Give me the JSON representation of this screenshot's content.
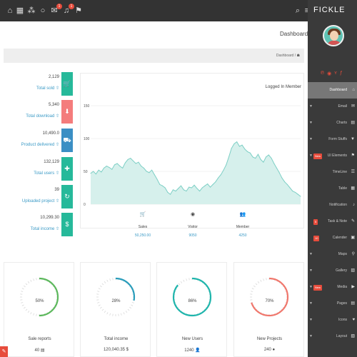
{
  "topbar": {
    "icons": [
      "home-icon",
      "grid-icon",
      "share-icon",
      "comment-icon",
      "envelope-icon",
      "bell-icon",
      "flag-icon"
    ],
    "badges": {
      "envelope": "1",
      "bell": "1"
    }
  },
  "brand": "FICKLE",
  "page": {
    "title": "Dashboard",
    "breadcrumb": "Dashboard  /"
  },
  "stats": [
    {
      "value": "2,129",
      "label": "Total sold",
      "icon": "cart-icon",
      "color": "#26b99a"
    },
    {
      "value": "5,340",
      "label": "Total download",
      "icon": "download-icon",
      "color": "#f47c7c"
    },
    {
      "value": "10,490.0",
      "label": "Product delivered",
      "icon": "truck-icon",
      "color": "#3b8fc4"
    },
    {
      "value": "132,129",
      "label": "Total users",
      "icon": "gift-icon",
      "color": "#26b99a"
    },
    {
      "value": "39",
      "label": "Uploaded project",
      "icon": "refresh-icon",
      "color": "#26b99a"
    },
    {
      "value": "10,299.30",
      "label": "Total income",
      "icon": "dollar-icon",
      "color": "#26b99a"
    }
  ],
  "chart": {
    "title": "Logged In Member",
    "kpis": [
      {
        "label": "Sales",
        "value": "50,250.00"
      },
      {
        "label": "Visitor",
        "value": "9050"
      },
      {
        "label": "Member",
        "value": "4250"
      }
    ]
  },
  "chart_data": {
    "type": "area",
    "title": "Logged In Member",
    "ylim": [
      0,
      150
    ],
    "yticks": [
      "150",
      "100",
      "50",
      "0"
    ],
    "grid": true,
    "color": "#7dcfc5",
    "series": [
      {
        "values": [
          47,
          50,
          46,
          52,
          49,
          55,
          58,
          56,
          53,
          60,
          62,
          58,
          55,
          63,
          68,
          70,
          66,
          62,
          64,
          58,
          55,
          50,
          48,
          52,
          45,
          38,
          30,
          28,
          25,
          18,
          15,
          22,
          20,
          24,
          28,
          22,
          20,
          26,
          25,
          29,
          24,
          20,
          25,
          28,
          31,
          26,
          30,
          34,
          40,
          45,
          52,
          60,
          72,
          85,
          92,
          95,
          88,
          90,
          84,
          80,
          78,
          72,
          70,
          76,
          68,
          64,
          72,
          75,
          70,
          62,
          55,
          48,
          40,
          34,
          30,
          25,
          20,
          18,
          15,
          12
        ]
      }
    ]
  },
  "cards": [
    {
      "pct": "50%",
      "label": "Sale reports",
      "value": "40",
      "color": "#5cb85c",
      "fraction": 0.5
    },
    {
      "pct": "28%",
      "label": "Total income",
      "value": "120,040.35 $",
      "color": "#2a9dbb",
      "fraction": 0.28
    },
    {
      "pct": "86%",
      "label": "New Users",
      "value": "1240",
      "color": "#1fb5ac",
      "fraction": 0.86
    },
    {
      "pct": "70%",
      "label": "New Projects",
      "value": "240",
      "color": "#f0776c",
      "fraction": 0.7
    }
  ],
  "social": [
    "pinterest-icon",
    "github-icon",
    "twitter-icon",
    "facebook-icon"
  ],
  "menu": [
    {
      "label": "Dashboard",
      "icon": "home-icon",
      "active": true,
      "arrow": false
    },
    {
      "label": "Email",
      "icon": "envelope-icon",
      "arrow": true
    },
    {
      "label": "Charts",
      "icon": "chart-icon",
      "arrow": true
    },
    {
      "label": "Form Stuffs",
      "icon": "tasks-icon",
      "arrow": true
    },
    {
      "label": "UI Elements",
      "icon": "flag-icon",
      "arrow": true,
      "tag": "New"
    },
    {
      "label": "TimeLine",
      "icon": "timeline-icon",
      "arrow": false
    },
    {
      "label": "Table",
      "icon": "table-icon",
      "arrow": false
    },
    {
      "label": "Notification",
      "icon": "bell-icon",
      "arrow": false
    },
    {
      "label": "Task & Note",
      "icon": "edit-icon",
      "arrow": false,
      "tag": "5"
    },
    {
      "label": "Calender",
      "icon": "calendar-icon",
      "arrow": false,
      "tag": "10"
    },
    {
      "label": "Maps",
      "icon": "marker-icon",
      "arrow": true
    },
    {
      "label": "Gallery",
      "icon": "image-icon",
      "arrow": true
    },
    {
      "label": "Media",
      "icon": "media-icon",
      "arrow": true,
      "tag": "New"
    },
    {
      "label": "Pages",
      "icon": "pages-icon",
      "arrow": true
    },
    {
      "label": "Icons",
      "icon": "icons-icon",
      "arrow": true
    },
    {
      "label": "Layout",
      "icon": "layout-icon",
      "arrow": true
    }
  ]
}
